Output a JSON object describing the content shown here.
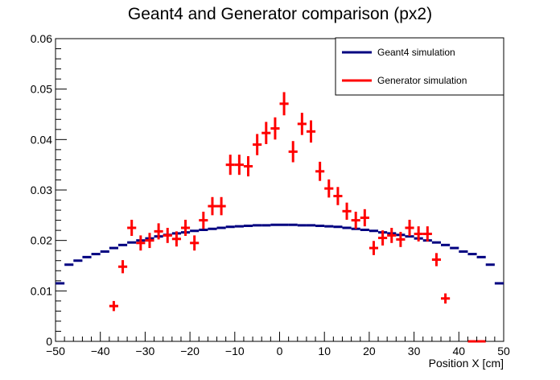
{
  "chart_data": {
    "type": "line",
    "title": "Geant4 and Generator comparison (px2)",
    "xlabel": "Position X [cm]",
    "ylabel": "",
    "xlim": [
      -50,
      50
    ],
    "ylim": [
      0,
      0.06
    ],
    "x_ticks": [
      "−50",
      "−40",
      "−30",
      "−20",
      "−10",
      "0",
      "10",
      "20",
      "30",
      "40",
      "50"
    ],
    "x_tick_values": [
      -50,
      -40,
      -30,
      -20,
      -10,
      0,
      10,
      20,
      30,
      40,
      50
    ],
    "y_ticks": [
      "0",
      "0.01",
      "0.02",
      "0.03",
      "0.04",
      "0.05",
      "0.06"
    ],
    "y_tick_values": [
      0,
      0.01,
      0.02,
      0.03,
      0.04,
      0.05,
      0.06
    ],
    "grid": false,
    "legend_position": "top-right",
    "series": [
      {
        "name": "Geant4 simulation",
        "style": "histogram",
        "color": "#000080",
        "bin_width": 2,
        "x": [
          -49,
          -47,
          -45,
          -43,
          -41,
          -39,
          -37,
          -35,
          -33,
          -31,
          -29,
          -27,
          -25,
          -23,
          -21,
          -19,
          -17,
          -15,
          -13,
          -11,
          -9,
          -7,
          -5,
          -3,
          -1,
          1,
          3,
          5,
          7,
          9,
          11,
          13,
          15,
          17,
          19,
          21,
          23,
          25,
          27,
          29,
          31,
          33,
          35,
          37,
          39,
          41,
          43,
          45,
          47,
          49
        ],
        "values": [
          0.0115,
          0.0152,
          0.016,
          0.0167,
          0.0173,
          0.0178,
          0.0185,
          0.0191,
          0.0196,
          0.02,
          0.0204,
          0.0208,
          0.0211,
          0.0214,
          0.0216,
          0.0219,
          0.0221,
          0.0223,
          0.0225,
          0.0227,
          0.0228,
          0.0229,
          0.023,
          0.023,
          0.0231,
          0.0231,
          0.0231,
          0.023,
          0.023,
          0.0229,
          0.0228,
          0.0227,
          0.0225,
          0.0223,
          0.0221,
          0.0219,
          0.0216,
          0.0214,
          0.0211,
          0.0208,
          0.0204,
          0.02,
          0.0196,
          0.0191,
          0.0185,
          0.0178,
          0.0173,
          0.0167,
          0.0152,
          0.0115
        ]
      },
      {
        "name": "Generator simulation",
        "style": "errorbars",
        "color": "#ff0000",
        "x_half_width": 1,
        "x": [
          -37,
          -35,
          -33,
          -31,
          -29,
          -27,
          -25,
          -23,
          -21,
          -19,
          -17,
          -15,
          -13,
          -11,
          -9,
          -7,
          -5,
          -3,
          -1,
          1,
          3,
          5,
          7,
          9,
          11,
          13,
          15,
          17,
          19,
          21,
          23,
          25,
          27,
          29,
          31,
          33,
          35,
          37,
          43,
          45
        ],
        "values": [
          0.007,
          0.0148,
          0.0225,
          0.0195,
          0.02,
          0.0218,
          0.021,
          0.0203,
          0.0225,
          0.0195,
          0.024,
          0.0268,
          0.0268,
          0.035,
          0.035,
          0.0347,
          0.039,
          0.0413,
          0.0422,
          0.0471,
          0.0376,
          0.0431,
          0.0416,
          0.0337,
          0.0303,
          0.0288,
          0.0258,
          0.024,
          0.0245,
          0.0185,
          0.0205,
          0.021,
          0.0202,
          0.0225,
          0.0213,
          0.0213,
          0.0162,
          0.0085,
          0.0,
          0.0
        ],
        "errors": [
          0.001,
          0.0013,
          0.0016,
          0.0015,
          0.0015,
          0.0016,
          0.0015,
          0.0015,
          0.0016,
          0.0015,
          0.0017,
          0.0018,
          0.0018,
          0.002,
          0.002,
          0.002,
          0.0021,
          0.0022,
          0.0022,
          0.0023,
          0.0021,
          0.0022,
          0.0022,
          0.0019,
          0.0018,
          0.0018,
          0.0017,
          0.0017,
          0.0017,
          0.0014,
          0.0015,
          0.0015,
          0.0015,
          0.0016,
          0.0015,
          0.0015,
          0.0013,
          0.001,
          0,
          0
        ]
      }
    ]
  }
}
